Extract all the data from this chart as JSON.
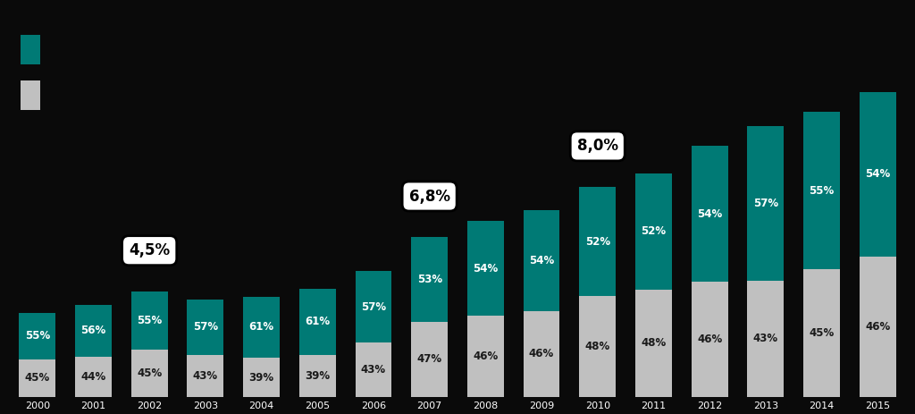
{
  "categories": [
    "2000",
    "2001",
    "2002",
    "2003",
    "2004",
    "2005",
    "2006",
    "2007",
    "2008",
    "2009",
    "2010",
    "2011",
    "2012",
    "2013",
    "2014",
    "2015"
  ],
  "bottom_pct": [
    45,
    44,
    45,
    43,
    39,
    39,
    43,
    47,
    46,
    46,
    48,
    48,
    46,
    43,
    45,
    46
  ],
  "top_pct": [
    55,
    56,
    55,
    57,
    61,
    61,
    57,
    53,
    54,
    54,
    52,
    52,
    54,
    57,
    55,
    54
  ],
  "total_heights": [
    62,
    68,
    78,
    72,
    74,
    80,
    93,
    118,
    130,
    138,
    155,
    165,
    185,
    200,
    210,
    225
  ],
  "bottom_color": "#c0c0c0",
  "top_color": "#007a75",
  "background_color": "#0a0a0a",
  "annotations": [
    {
      "label": "4,5%",
      "bar_index": 2
    },
    {
      "label": "6,8%",
      "bar_index": 7
    },
    {
      "label": "8,0%",
      "bar_index": 10
    }
  ]
}
